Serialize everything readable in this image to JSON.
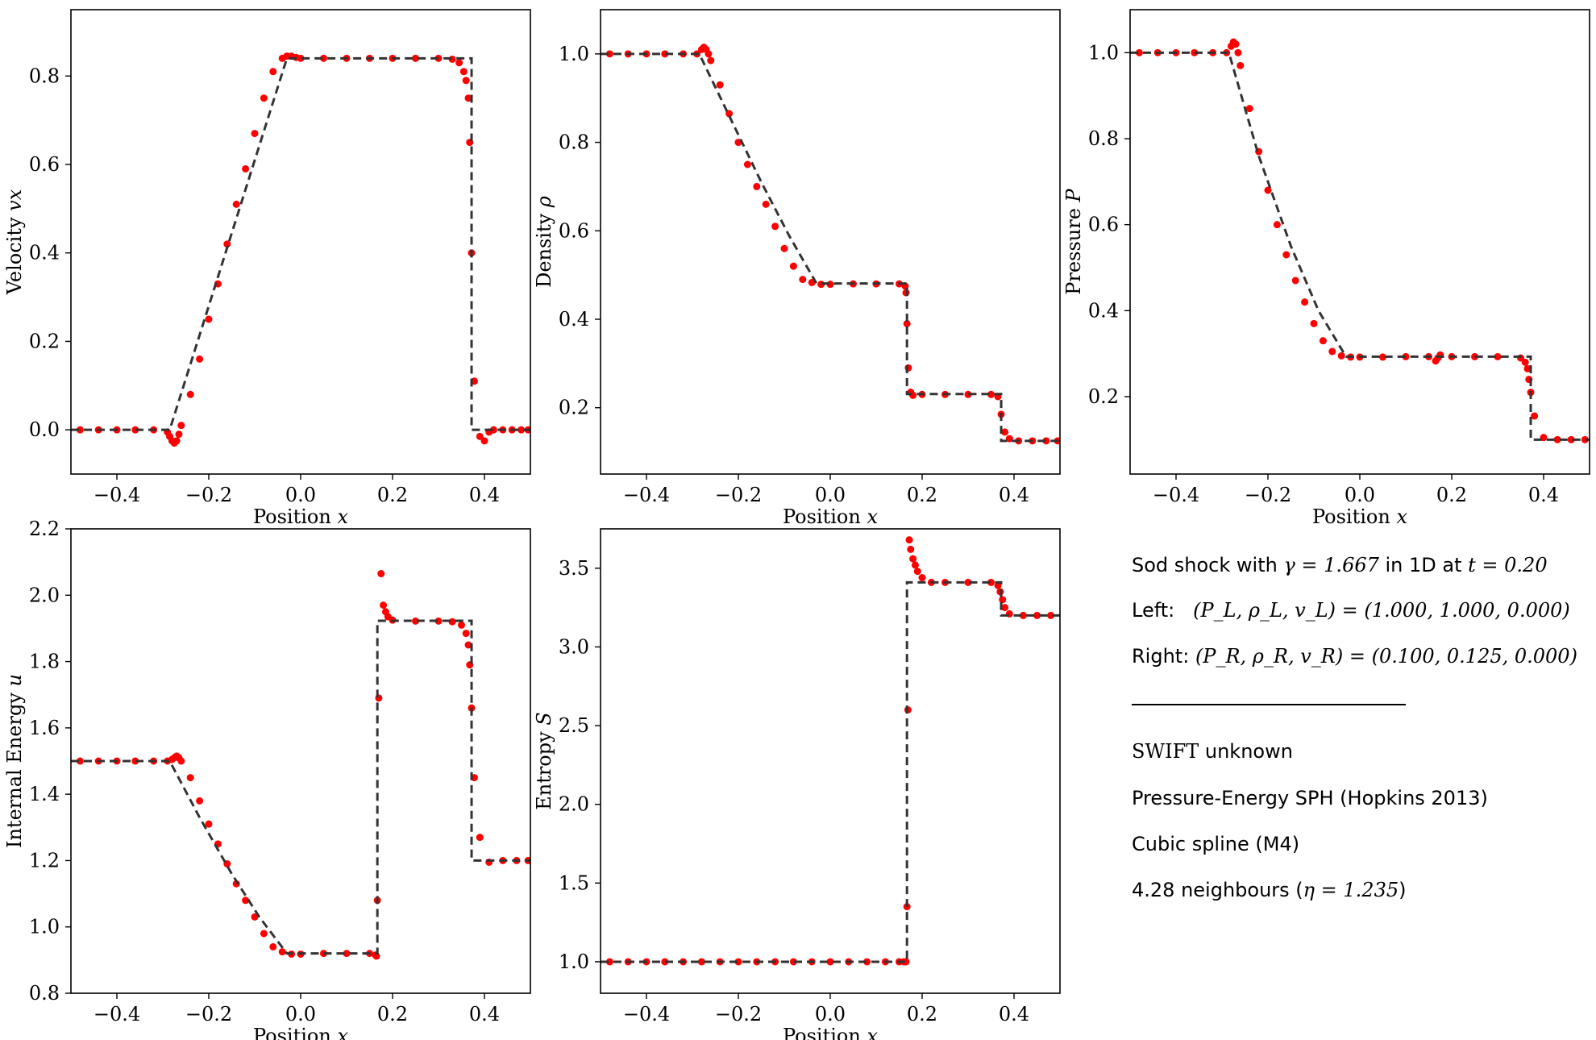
{
  "chart_data": [
    {
      "type": "scatter",
      "xlabel": "Position x",
      "ylabel": "Velocity vx",
      "xlim": [
        -0.5,
        0.5
      ],
      "ylim": [
        -0.1,
        0.95
      ],
      "xticks": [
        -0.4,
        -0.2,
        0.0,
        0.2,
        0.4
      ],
      "yticks": [
        0.0,
        0.2,
        0.4,
        0.6,
        0.8
      ],
      "series": [
        {
          "role": "analytic",
          "style": "dashed",
          "color": "#333333",
          "x": [
            -0.5,
            -0.285,
            -0.03,
            0.372,
            0.372,
            0.5
          ],
          "y": [
            0.0,
            0.0,
            0.84,
            0.84,
            0.0,
            0.0
          ]
        },
        {
          "role": "simulation",
          "style": "points",
          "color": "#ff0000",
          "x": [
            -0.48,
            -0.44,
            -0.4,
            -0.36,
            -0.32,
            -0.29,
            -0.285,
            -0.28,
            -0.275,
            -0.27,
            -0.265,
            -0.26,
            -0.24,
            -0.22,
            -0.2,
            -0.18,
            -0.16,
            -0.14,
            -0.12,
            -0.1,
            -0.08,
            -0.06,
            -0.04,
            -0.03,
            -0.02,
            -0.01,
            0.0,
            0.05,
            0.1,
            0.15,
            0.2,
            0.25,
            0.3,
            0.33,
            0.345,
            0.355,
            0.36,
            0.365,
            0.368,
            0.372,
            0.378,
            0.39,
            0.4,
            0.41,
            0.42,
            0.44,
            0.46,
            0.48,
            0.495
          ],
          "y": [
            0.0,
            0.0,
            0.0,
            0.0,
            0.0,
            -0.005,
            -0.015,
            -0.025,
            -0.03,
            -0.025,
            -0.01,
            0.01,
            0.08,
            0.16,
            0.25,
            0.33,
            0.42,
            0.51,
            0.59,
            0.67,
            0.75,
            0.81,
            0.84,
            0.845,
            0.845,
            0.842,
            0.84,
            0.84,
            0.84,
            0.84,
            0.84,
            0.84,
            0.84,
            0.838,
            0.83,
            0.81,
            0.79,
            0.75,
            0.65,
            0.4,
            0.11,
            -0.015,
            -0.025,
            -0.005,
            0.0,
            0.0,
            0.0,
            0.0,
            0.0
          ]
        }
      ]
    },
    {
      "type": "scatter",
      "xlabel": "Position x",
      "ylabel": "Density ρ",
      "xlim": [
        -0.5,
        0.5
      ],
      "ylim": [
        0.05,
        1.1
      ],
      "xticks": [
        -0.4,
        -0.2,
        0.0,
        0.2,
        0.4
      ],
      "yticks": [
        0.2,
        0.4,
        0.6,
        0.8,
        1.0
      ],
      "series": [
        {
          "role": "analytic",
          "style": "dashed",
          "color": "#333333",
          "x": [
            -0.5,
            -0.285,
            -0.22,
            -0.15,
            -0.09,
            -0.03,
            0.167,
            0.167,
            0.372,
            0.372,
            0.5
          ],
          "y": [
            1.0,
            1.0,
            0.86,
            0.71,
            0.59,
            0.481,
            0.481,
            0.231,
            0.231,
            0.125,
            0.125
          ]
        },
        {
          "role": "simulation",
          "style": "points",
          "color": "#ff0000",
          "x": [
            -0.48,
            -0.44,
            -0.4,
            -0.36,
            -0.32,
            -0.29,
            -0.28,
            -0.275,
            -0.27,
            -0.265,
            -0.26,
            -0.24,
            -0.22,
            -0.2,
            -0.18,
            -0.16,
            -0.14,
            -0.12,
            -0.1,
            -0.08,
            -0.06,
            -0.04,
            -0.02,
            0.0,
            0.05,
            0.1,
            0.15,
            0.163,
            0.165,
            0.167,
            0.17,
            0.175,
            0.18,
            0.2,
            0.25,
            0.3,
            0.35,
            0.365,
            0.372,
            0.38,
            0.39,
            0.41,
            0.44,
            0.47,
            0.495
          ],
          "y": [
            1.0,
            1.0,
            1.0,
            1.0,
            1.0,
            1.0,
            1.01,
            1.015,
            1.01,
            1.0,
            0.985,
            0.93,
            0.865,
            0.8,
            0.75,
            0.7,
            0.66,
            0.61,
            0.56,
            0.52,
            0.49,
            0.483,
            0.479,
            0.479,
            0.48,
            0.48,
            0.48,
            0.475,
            0.46,
            0.39,
            0.29,
            0.235,
            0.228,
            0.23,
            0.23,
            0.23,
            0.23,
            0.225,
            0.185,
            0.145,
            0.13,
            0.125,
            0.125,
            0.125,
            0.125
          ]
        }
      ]
    },
    {
      "type": "scatter",
      "xlabel": "Position x",
      "ylabel": "Pressure P",
      "xlim": [
        -0.5,
        0.5
      ],
      "ylim": [
        0.02,
        1.1
      ],
      "xticks": [
        -0.4,
        -0.2,
        0.0,
        0.2,
        0.4
      ],
      "yticks": [
        0.2,
        0.4,
        0.6,
        0.8,
        1.0
      ],
      "series": [
        {
          "role": "analytic",
          "style": "dashed",
          "color": "#333333",
          "x": [
            -0.5,
            -0.285,
            -0.22,
            -0.15,
            -0.09,
            -0.03,
            0.372,
            0.372,
            0.5
          ],
          "y": [
            1.0,
            1.0,
            0.76,
            0.55,
            0.4,
            0.293,
            0.293,
            0.1,
            0.1
          ]
        },
        {
          "role": "simulation",
          "style": "points",
          "color": "#ff0000",
          "x": [
            -0.48,
            -0.44,
            -0.4,
            -0.36,
            -0.32,
            -0.29,
            -0.28,
            -0.275,
            -0.27,
            -0.265,
            -0.26,
            -0.24,
            -0.22,
            -0.2,
            -0.18,
            -0.16,
            -0.14,
            -0.12,
            -0.1,
            -0.08,
            -0.06,
            -0.04,
            -0.02,
            0.0,
            0.05,
            0.1,
            0.15,
            0.165,
            0.17,
            0.175,
            0.2,
            0.25,
            0.3,
            0.35,
            0.36,
            0.365,
            0.368,
            0.372,
            0.38,
            0.4,
            0.43,
            0.46,
            0.49
          ],
          "y": [
            1.0,
            1.0,
            1.0,
            1.0,
            1.0,
            1.0,
            1.015,
            1.025,
            1.02,
            1.0,
            0.97,
            0.87,
            0.77,
            0.68,
            0.6,
            0.53,
            0.47,
            0.42,
            0.37,
            0.33,
            0.305,
            0.295,
            0.292,
            0.292,
            0.292,
            0.293,
            0.293,
            0.283,
            0.29,
            0.297,
            0.293,
            0.293,
            0.293,
            0.29,
            0.28,
            0.265,
            0.24,
            0.21,
            0.155,
            0.105,
            0.1,
            0.1,
            0.1
          ]
        }
      ]
    },
    {
      "type": "scatter",
      "xlabel": "Position x",
      "ylabel": "Internal Energy u",
      "xlim": [
        -0.5,
        0.5
      ],
      "ylim": [
        0.8,
        2.2
      ],
      "xticks": [
        -0.4,
        -0.2,
        0.0,
        0.2,
        0.4
      ],
      "yticks": [
        0.8,
        1.0,
        1.2,
        1.4,
        1.6,
        1.8,
        2.0,
        2.2
      ],
      "series": [
        {
          "role": "analytic",
          "style": "dashed",
          "color": "#333333",
          "x": [
            -0.5,
            -0.285,
            -0.22,
            -0.15,
            -0.09,
            -0.03,
            0.167,
            0.167,
            0.372,
            0.372,
            0.5
          ],
          "y": [
            1.5,
            1.5,
            1.33,
            1.16,
            1.03,
            0.92,
            0.92,
            1.923,
            1.923,
            1.2,
            1.2
          ]
        },
        {
          "role": "simulation",
          "style": "points",
          "color": "#ff0000",
          "x": [
            -0.48,
            -0.44,
            -0.4,
            -0.36,
            -0.32,
            -0.29,
            -0.28,
            -0.275,
            -0.27,
            -0.265,
            -0.26,
            -0.24,
            -0.22,
            -0.2,
            -0.18,
            -0.16,
            -0.14,
            -0.12,
            -0.1,
            -0.08,
            -0.06,
            -0.04,
            -0.02,
            0.0,
            0.05,
            0.1,
            0.15,
            0.163,
            0.165,
            0.167,
            0.17,
            0.175,
            0.18,
            0.185,
            0.19,
            0.2,
            0.25,
            0.3,
            0.33,
            0.35,
            0.36,
            0.365,
            0.368,
            0.372,
            0.378,
            0.39,
            0.41,
            0.44,
            0.47,
            0.495
          ],
          "y": [
            1.5,
            1.5,
            1.5,
            1.5,
            1.5,
            1.5,
            1.505,
            1.51,
            1.515,
            1.51,
            1.5,
            1.45,
            1.38,
            1.31,
            1.25,
            1.19,
            1.13,
            1.08,
            1.03,
            0.98,
            0.94,
            0.925,
            0.918,
            0.918,
            0.92,
            0.92,
            0.92,
            0.915,
            0.912,
            1.08,
            1.69,
            2.065,
            1.97,
            1.95,
            1.935,
            1.925,
            1.922,
            1.922,
            1.92,
            1.91,
            1.885,
            1.85,
            1.79,
            1.66,
            1.45,
            1.27,
            1.195,
            1.2,
            1.2,
            1.2
          ]
        }
      ]
    },
    {
      "type": "scatter",
      "xlabel": "Position x",
      "ylabel": "Entropy S",
      "xlim": [
        -0.5,
        0.5
      ],
      "ylim": [
        0.8,
        3.75
      ],
      "xticks": [
        -0.4,
        -0.2,
        0.0,
        0.2,
        0.4
      ],
      "yticks": [
        1.0,
        1.5,
        2.0,
        2.5,
        3.0,
        3.5
      ],
      "series": [
        {
          "role": "analytic",
          "style": "dashed",
          "color": "#333333",
          "x": [
            -0.5,
            0.167,
            0.167,
            0.372,
            0.372,
            0.5
          ],
          "y": [
            1.0,
            1.0,
            3.41,
            3.41,
            3.2,
            3.2
          ]
        },
        {
          "role": "simulation",
          "style": "points",
          "color": "#ff0000",
          "x": [
            -0.48,
            -0.44,
            -0.4,
            -0.36,
            -0.32,
            -0.28,
            -0.24,
            -0.2,
            -0.16,
            -0.12,
            -0.08,
            -0.04,
            0.0,
            0.04,
            0.08,
            0.12,
            0.15,
            0.16,
            0.163,
            0.165,
            0.167,
            0.169,
            0.172,
            0.175,
            0.18,
            0.185,
            0.19,
            0.2,
            0.22,
            0.25,
            0.3,
            0.35,
            0.365,
            0.37,
            0.375,
            0.38,
            0.39,
            0.42,
            0.45,
            0.48
          ],
          "y": [
            1.0,
            1.0,
            1.0,
            1.0,
            1.0,
            1.0,
            1.0,
            1.0,
            1.0,
            1.0,
            1.0,
            1.0,
            1.0,
            1.0,
            1.0,
            1.0,
            1.0,
            1.0,
            1.0,
            1.0,
            1.35,
            2.6,
            3.68,
            3.62,
            3.56,
            3.52,
            3.48,
            3.44,
            3.41,
            3.41,
            3.41,
            3.41,
            3.39,
            3.35,
            3.3,
            3.25,
            3.21,
            3.2,
            3.2,
            3.2
          ]
        }
      ]
    }
  ],
  "info": {
    "title_prefix": "Sod shock with ",
    "title_math": "γ = 1.667",
    "title_mid": " in 1D at ",
    "title_time": "t = 0.20",
    "left_label": "Left:",
    "left_math": "(P_L, ρ_L, v_L) = (1.000, 1.000, 0.000)",
    "right_label": "Right:",
    "right_math": "(P_R, ρ_R, v_R) = (0.100, 0.125, 0.000)",
    "code_name": "SWIFT",
    "code_version": " unknown",
    "scheme": "Pressure-Energy SPH (Hopkins 2013)",
    "kernel": "Cubic spline (M4)",
    "neighbours_prefix": "4.28 neighbours (",
    "neighbours_math": "η = 1.235",
    "neighbours_suffix": ")"
  }
}
